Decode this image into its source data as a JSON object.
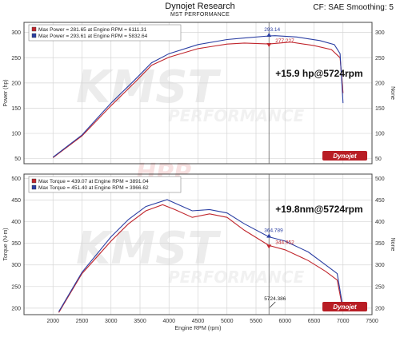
{
  "header": {
    "title": "Dynojet Research",
    "subtitle": "MST PERFORMANCE",
    "right": "CF: SAE Smoothing: 5"
  },
  "logo": {
    "text": "Dynojet",
    "watermark_1": "KMST",
    "watermark_2": "PERFORMANCE",
    "watermark_3": "HPP"
  },
  "colors": {
    "red": "#c0262d",
    "blue": "#2b3fa3",
    "grid": "#d6d6d6",
    "frame": "#444444",
    "logo_bg": "#b81d24"
  },
  "chart_data": [
    {
      "type": "line",
      "ylabel": "Power (hp)",
      "right_label": "None",
      "xlim": [
        1500,
        7500
      ],
      "ylim": [
        40,
        320
      ],
      "yticks": [
        50,
        100,
        150,
        200,
        250,
        300
      ],
      "grid": true,
      "legend_position": "top-left",
      "legend": [
        "Max Power = 281.65 at Engine RPM = 6111.31",
        "Max Power = 293.61 at Engine RPM = 5832.64"
      ],
      "annotation": "+15.9 hp@5724rpm",
      "point_labels": [
        "293.14",
        "277.227"
      ],
      "series": [
        {
          "color": "red",
          "x": [
            2000,
            2500,
            3000,
            3400,
            3700,
            4000,
            4500,
            5000,
            5300,
            5724,
            6100,
            6500,
            6800,
            6950,
            7000
          ],
          "y": [
            52,
            95,
            155,
            200,
            235,
            251,
            268,
            277,
            279,
            277.2,
            281,
            274,
            266,
            250,
            180
          ]
        },
        {
          "color": "blue",
          "x": [
            2000,
            2500,
            3000,
            3400,
            3700,
            4000,
            4500,
            5000,
            5300,
            5724,
            5830,
            6200,
            6600,
            6850,
            6950,
            7000
          ],
          "y": [
            53,
            97,
            160,
            205,
            240,
            258,
            276,
            286,
            289,
            293.1,
            293.6,
            291,
            284,
            276,
            258,
            160
          ]
        }
      ]
    },
    {
      "type": "line",
      "ylabel": "Torque (N-m)",
      "right_label": "None",
      "xlabel": "Engine RPM (rpm)",
      "xlim": [
        1500,
        7500
      ],
      "ylim": [
        185,
        510
      ],
      "xticks": [
        2000,
        2500,
        3000,
        3500,
        4000,
        4500,
        5000,
        5500,
        6000,
        6500,
        7000,
        7500
      ],
      "yticks": [
        200,
        250,
        300,
        350,
        400,
        450,
        500
      ],
      "grid": true,
      "legend_position": "top-left",
      "legend": [
        "Max Torque = 439.07 at Engine RPM = 3891.04",
        "Max Torque = 451.40 at Engine RPM = 3966.62"
      ],
      "annotation": "+19.8nm@5724rpm",
      "point_labels": [
        "364.789",
        "344.952"
      ],
      "marker_label": "5724.386",
      "series": [
        {
          "color": "red",
          "x": [
            2100,
            2500,
            3000,
            3300,
            3600,
            3891,
            4100,
            4400,
            4700,
            5000,
            5300,
            5724,
            6000,
            6400,
            6700,
            6900,
            7000
          ],
          "y": [
            190,
            280,
            355,
            395,
            425,
            439,
            428,
            410,
            418,
            410,
            380,
            345,
            335,
            310,
            285,
            265,
            195
          ]
        },
        {
          "color": "blue",
          "x": [
            2100,
            2500,
            3000,
            3300,
            3600,
            3967,
            4150,
            4400,
            4700,
            5000,
            5300,
            5724,
            6000,
            6400,
            6700,
            6900,
            7000
          ],
          "y": [
            192,
            283,
            365,
            405,
            435,
            451,
            440,
            425,
            428,
            420,
            395,
            364.8,
            355,
            330,
            300,
            280,
            200
          ]
        }
      ]
    }
  ]
}
